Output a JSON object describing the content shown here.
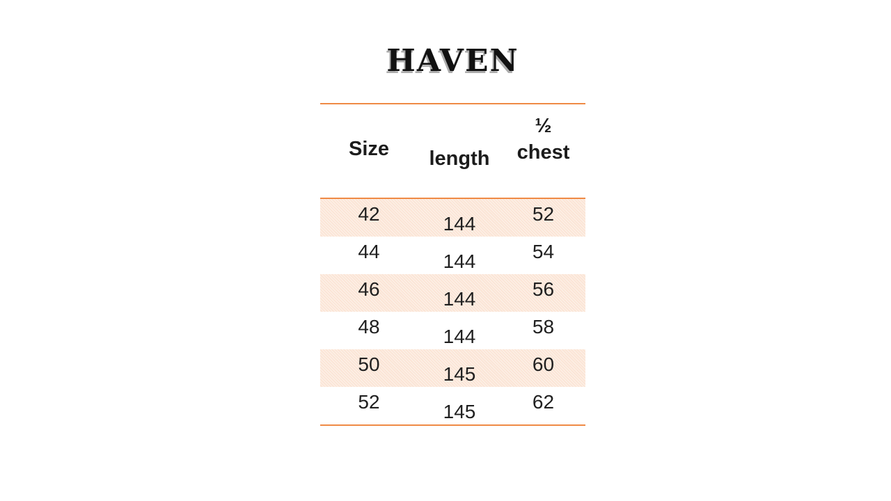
{
  "title": "HAVEN",
  "table": {
    "columns": [
      {
        "key": "size",
        "label": "Size"
      },
      {
        "key": "length",
        "label": "length"
      },
      {
        "key": "half_chest",
        "label": "½ chest",
        "label_line1": "½",
        "label_line2": "chest"
      }
    ],
    "rows": [
      {
        "size": "42",
        "length": "144",
        "half_chest": "52"
      },
      {
        "size": "44",
        "length": "144",
        "half_chest": "54"
      },
      {
        "size": "46",
        "length": "144",
        "half_chest": "56"
      },
      {
        "size": "48",
        "length": "144",
        "half_chest": "58"
      },
      {
        "size": "50",
        "length": "145",
        "half_chest": "60"
      },
      {
        "size": "52",
        "length": "145",
        "half_chest": "62"
      }
    ]
  },
  "colors": {
    "accent_rule": "#ED7D31",
    "row_shade": "#FBE5D6",
    "text": "#1c1c1c",
    "background": "#ffffff"
  }
}
